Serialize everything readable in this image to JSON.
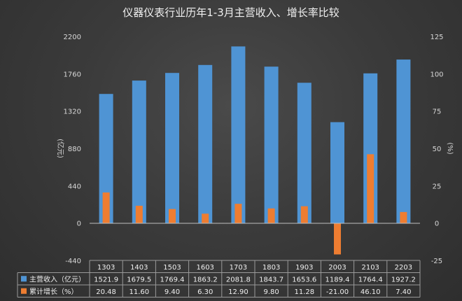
{
  "chart_data": {
    "type": "bar",
    "title": "仪器仪表行业历年1-3月主营收入、增长率比较",
    "categories": [
      "1303",
      "1403",
      "1503",
      "1603",
      "1703",
      "1803",
      "1903",
      "2003",
      "2103",
      "2203"
    ],
    "series": [
      {
        "name": "主营收入（亿元）",
        "axis": "left",
        "color": "#4f94d4",
        "values": [
          1521.9,
          1679.5,
          1769.4,
          1863.2,
          2081.8,
          1843.7,
          1653.6,
          1189.4,
          1764.4,
          1927.2
        ],
        "table_text": [
          "1521.9",
          "1679.5",
          "1769.4",
          "1863.2",
          "2081.8",
          "1843.7",
          "1653.6",
          "1189.4",
          "1764.4",
          "1927.2"
        ]
      },
      {
        "name": "累计增长（%）",
        "axis": "right",
        "color": "#ee7d31",
        "values": [
          20.48,
          11.6,
          9.4,
          6.3,
          12.9,
          9.8,
          11.28,
          -21.0,
          46.1,
          7.4
        ],
        "table_text": [
          "20.48",
          "11.60",
          "9.40",
          "6.30",
          "12.90",
          "9.80",
          "11.28",
          "-21.00",
          "46.10",
          "7.40"
        ]
      }
    ],
    "ylabel": "(亿元)",
    "ylabel_right": "(%)",
    "ylim": [
      -440,
      2200
    ],
    "yticks": [
      "2200",
      "1760",
      "1320",
      "880",
      "440",
      "0",
      "-440"
    ],
    "ylim_right": [
      -25,
      125
    ],
    "yticks_right": [
      "125",
      "100",
      "75",
      "50",
      "25",
      "0",
      "-25"
    ],
    "grid": false,
    "legend": "data-table"
  }
}
